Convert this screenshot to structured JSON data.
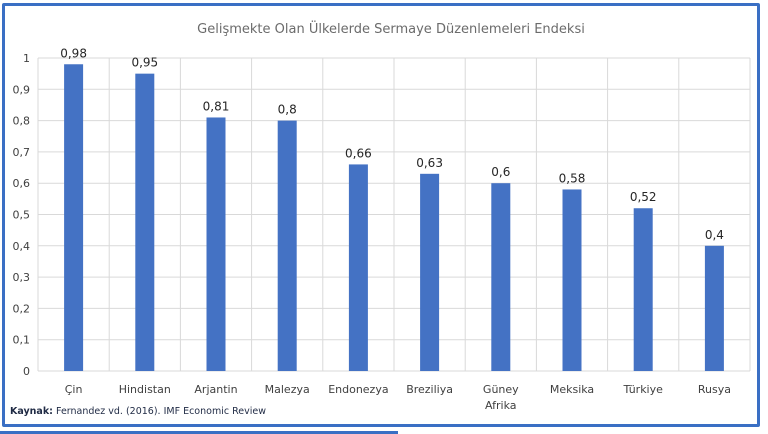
{
  "chart_data": {
    "type": "bar",
    "title": "Gelişmekte Olan Ülkelerde Sermaye Düzenlemeleri Endeksi",
    "xlabel": "",
    "ylabel": "",
    "categories": [
      "Çin",
      "Hindistan",
      "Arjantin",
      "Malezya",
      "Endonezya",
      "Breziliya",
      "Güney Afrika",
      "Meksika",
      "Türkiye",
      "Rusya"
    ],
    "category_lines": [
      [
        "Çin"
      ],
      [
        "Hindistan"
      ],
      [
        "Arjantin"
      ],
      [
        "Malezya"
      ],
      [
        "Endonezya"
      ],
      [
        "Breziliya"
      ],
      [
        "Güney",
        "Afrika"
      ],
      [
        "Meksika"
      ],
      [
        "Türkiye"
      ],
      [
        "Rusya"
      ]
    ],
    "values": [
      0.98,
      0.95,
      0.81,
      0.8,
      0.66,
      0.63,
      0.6,
      0.58,
      0.52,
      0.4
    ],
    "value_labels": [
      "0,98",
      "0,95",
      "0,81",
      "0,8",
      "0,66",
      "0,63",
      "0,6",
      "0,58",
      "0,52",
      "0,4"
    ],
    "ylim": [
      0,
      1
    ],
    "yticks": [
      0,
      0.1,
      0.2,
      0.3,
      0.4,
      0.5,
      0.6,
      0.7,
      0.8,
      0.9,
      1
    ],
    "ytick_labels": [
      "0",
      "0,1",
      "0,2",
      "0,3",
      "0,4",
      "0,5",
      "0,6",
      "0,7",
      "0,8",
      "0,9",
      "1"
    ],
    "grid": true,
    "bar_color": "#4472c4"
  },
  "source": {
    "label": "Kaynak:",
    "text": "Fernandez vd. (2016). IMF Economic Review"
  },
  "colors": {
    "frame": "#3a6fc4",
    "grid": "#d9d9d9"
  }
}
